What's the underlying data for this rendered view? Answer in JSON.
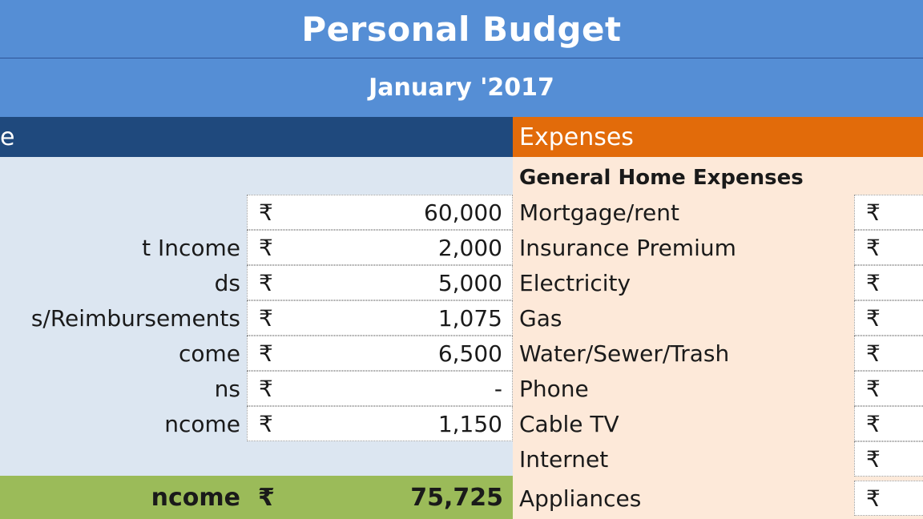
{
  "header": {
    "title": "Personal Budget",
    "subtitle": "January '2017"
  },
  "income": {
    "header_label": "e",
    "rows": [
      {
        "label": "",
        "currency": "₹",
        "amount": "60,000"
      },
      {
        "label": "t Income",
        "currency": "₹",
        "amount": "2,000"
      },
      {
        "label": "ds",
        "currency": "₹",
        "amount": "5,000"
      },
      {
        "label": "s/Reimbursements",
        "currency": "₹",
        "amount": "1,075"
      },
      {
        "label": "come",
        "currency": "₹",
        "amount": "6,500"
      },
      {
        "label": "ns",
        "currency": "₹",
        "amount": "-"
      },
      {
        "label": "ncome",
        "currency": "₹",
        "amount": "1,150"
      }
    ],
    "total": {
      "label": "ncome",
      "currency": "₹",
      "amount": "75,725"
    }
  },
  "expenses": {
    "header_label": "Expenses",
    "subheading": "General Home Expenses",
    "rows": [
      {
        "label": "Mortgage/rent",
        "currency": "₹"
      },
      {
        "label": "Insurance Premium",
        "currency": "₹"
      },
      {
        "label": "Electricity",
        "currency": "₹"
      },
      {
        "label": "Gas",
        "currency": "₹"
      },
      {
        "label": "Water/Sewer/Trash",
        "currency": "₹"
      },
      {
        "label": "Phone",
        "currency": "₹"
      },
      {
        "label": "Cable TV",
        "currency": "₹"
      },
      {
        "label": "Internet",
        "currency": "₹"
      },
      {
        "label": "Appliances",
        "currency": "₹"
      }
    ]
  },
  "colors": {
    "title_bar": "#558ed5",
    "income_header": "#1f497d",
    "income_body": "#dce6f1",
    "income_total": "#9bbb59",
    "expenses_header": "#e26b0a",
    "expenses_body": "#fde9d9"
  }
}
